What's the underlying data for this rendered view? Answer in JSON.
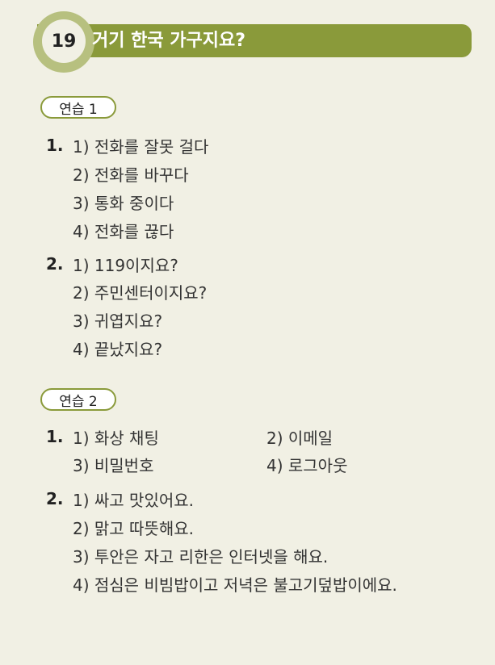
{
  "header": {
    "number": "19",
    "title": "거기 한국 가구지요?"
  },
  "practice1": {
    "label": "연습 1",
    "q1": {
      "num": "1.",
      "items": [
        "1) 전화를 잘못 걸다",
        "2) 전화를 바꾸다",
        "3) 통화 중이다",
        "4) 전화를 끊다"
      ]
    },
    "q2": {
      "num": "2.",
      "items": [
        "1) 119이지요?",
        "2) 주민센터이지요?",
        "3) 귀엽지요?",
        "4) 끝났지요?"
      ]
    }
  },
  "practice2": {
    "label": "연습 2",
    "q1": {
      "num": "1.",
      "items": [
        "1) 화상 채팅",
        "2) 이메일",
        "3) 비밀번호",
        "4) 로그아웃"
      ]
    },
    "q2": {
      "num": "2.",
      "items": [
        "1) 싸고 맛있어요.",
        "2) 맑고 따뜻해요.",
        "3) 투안은 자고 리한은 인터넷을 해요.",
        "4) 점심은 비빔밥이고 저녁은 불고기덮밥이에요."
      ]
    }
  }
}
